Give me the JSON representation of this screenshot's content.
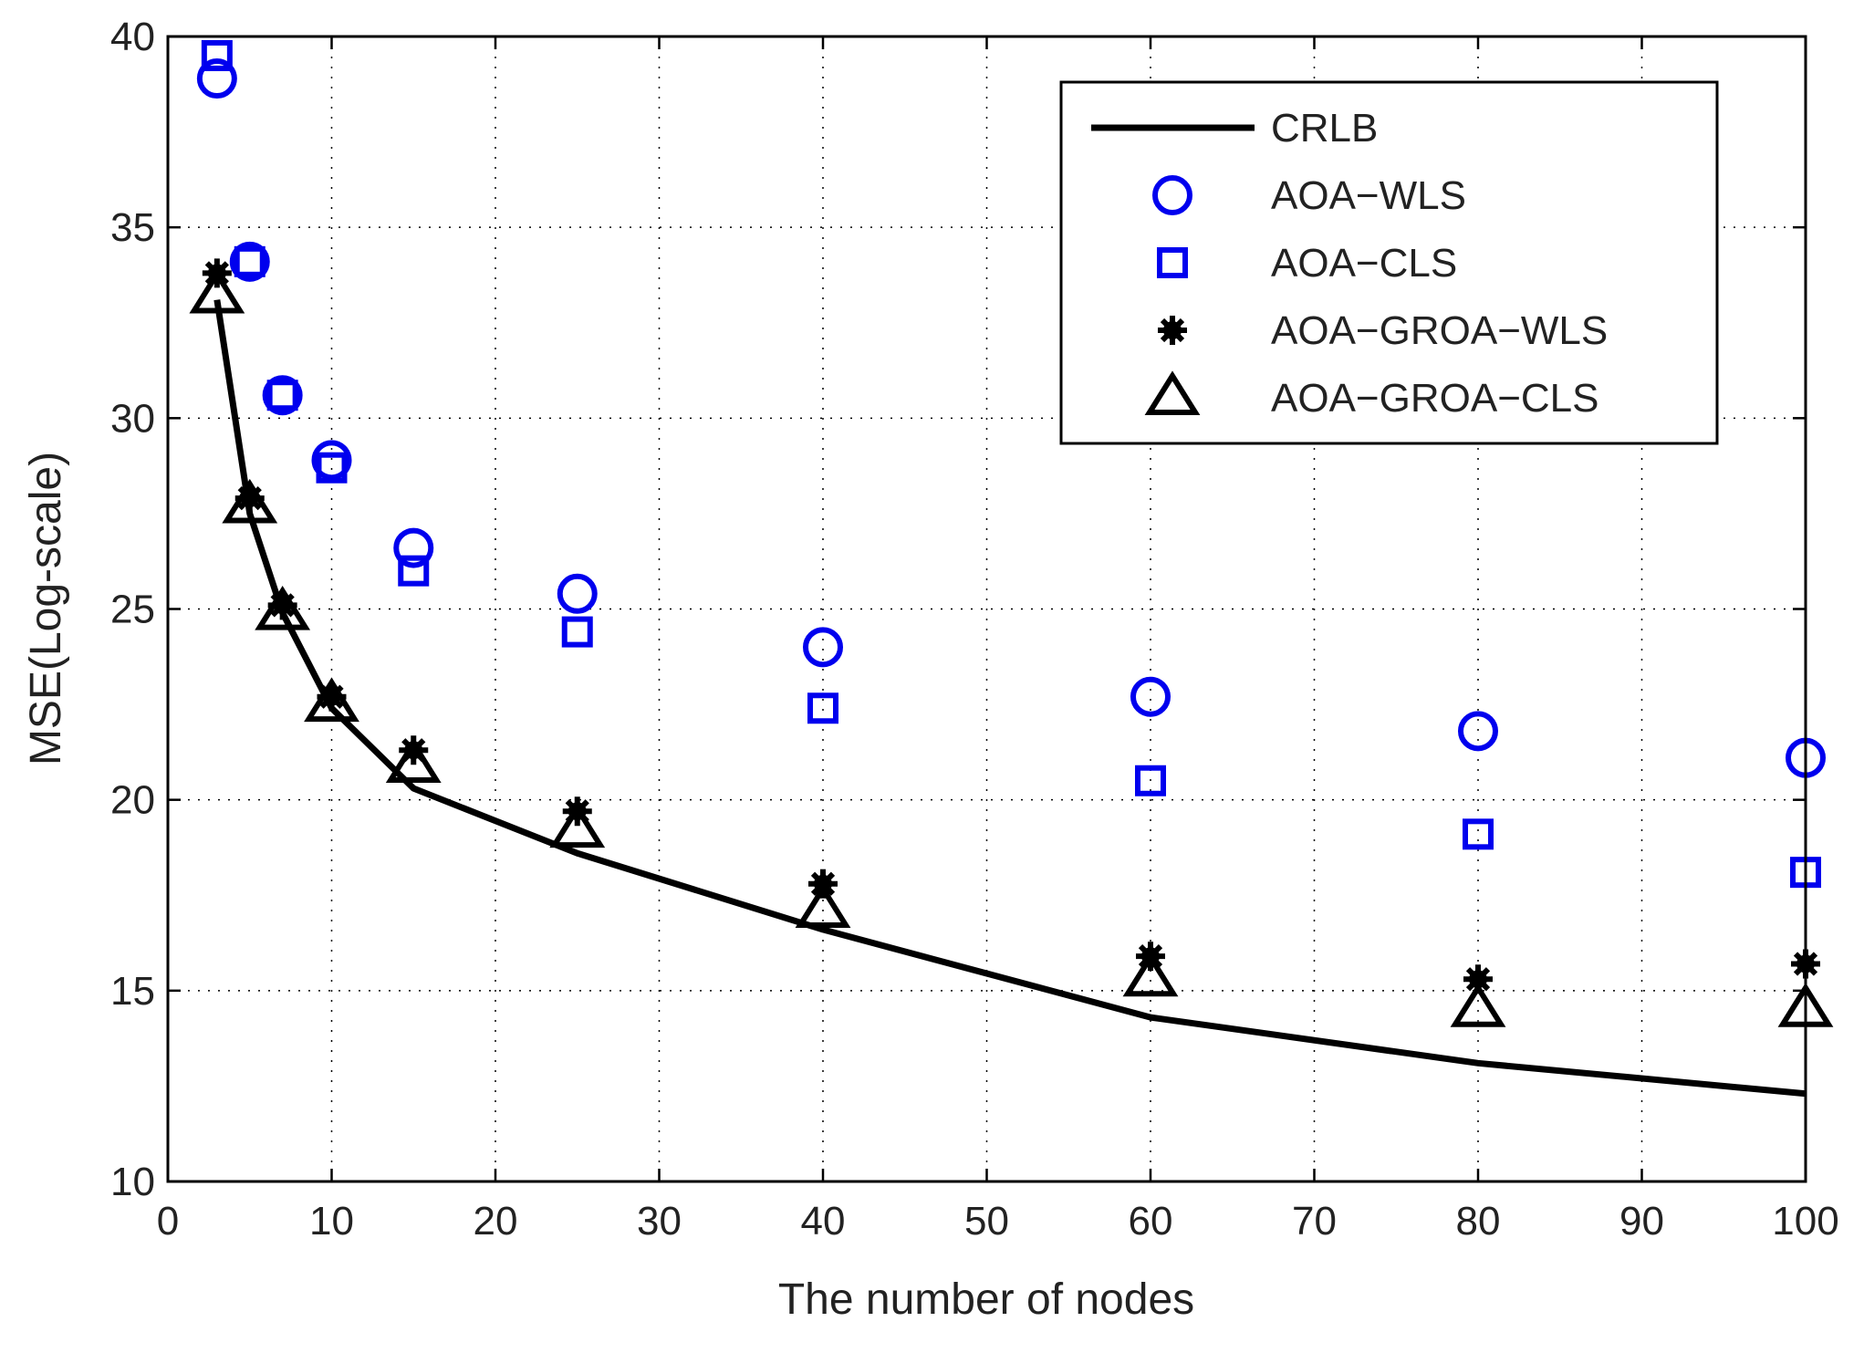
{
  "chart_data": {
    "type": "line",
    "title": "",
    "xlabel": "The number of nodes",
    "ylabel": "MSE(Log-scale)",
    "xlim": [
      0,
      100
    ],
    "ylim": [
      10,
      40
    ],
    "xticks": [
      0,
      10,
      20,
      30,
      40,
      50,
      60,
      70,
      80,
      90,
      100
    ],
    "yticks": [
      10,
      15,
      20,
      25,
      30,
      35,
      40
    ],
    "grid": true,
    "legend_position": "top-right",
    "x": [
      3,
      5,
      7,
      10,
      15,
      25,
      40,
      60,
      80,
      100
    ],
    "series": [
      {
        "name": "CRLB",
        "style": "line",
        "color": "#000000",
        "values": [
          33.1,
          27.5,
          24.9,
          22.4,
          20.3,
          18.6,
          16.6,
          14.3,
          13.1,
          12.3
        ]
      },
      {
        "name": "AOA−WLS",
        "style": "circle",
        "color": "#0000ee",
        "values": [
          38.9,
          34.1,
          30.6,
          28.9,
          26.6,
          25.4,
          24.0,
          22.7,
          21.8,
          21.1
        ]
      },
      {
        "name": "AOA−CLS",
        "style": "square",
        "color": "#0000ee",
        "values": [
          39.5,
          34.1,
          30.6,
          28.7,
          26.0,
          24.4,
          22.4,
          20.5,
          19.1,
          18.1
        ]
      },
      {
        "name": "AOA−GROA−WLS",
        "style": "star",
        "color": "#000000",
        "values": [
          33.8,
          27.9,
          25.1,
          22.7,
          21.3,
          19.7,
          17.8,
          15.9,
          15.3,
          15.7
        ]
      },
      {
        "name": "AOA−GROA−CLS",
        "style": "triangle",
        "color": "#000000",
        "values": [
          33.2,
          27.7,
          24.9,
          22.5,
          20.9,
          19.2,
          17.1,
          15.3,
          14.5,
          14.5
        ]
      }
    ]
  }
}
